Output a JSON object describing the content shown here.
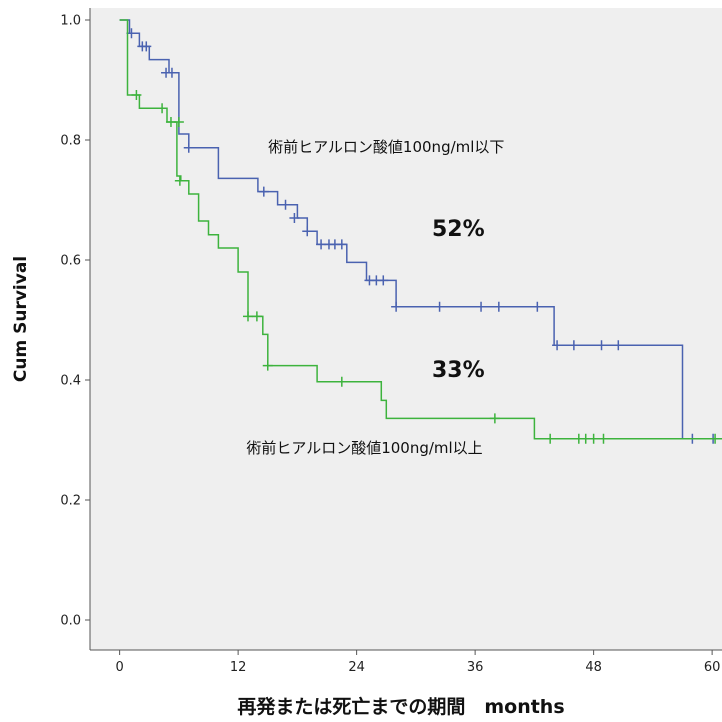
{
  "chart_data": {
    "type": "line",
    "subtype": "kaplan-meier",
    "title": "",
    "xlabel": "再発または死亡までの期間　months",
    "ylabel": "Cum Survival",
    "xlim": [
      -3,
      61
    ],
    "ylim": [
      -0.05,
      1.02
    ],
    "x_ticks": [
      0,
      12,
      24,
      36,
      48,
      60
    ],
    "x_tick_labels": [
      "0",
      "12",
      "24",
      "36",
      "48",
      "60"
    ],
    "y_ticks": [
      0.0,
      0.2,
      0.4,
      0.6,
      0.8,
      1.0
    ],
    "y_tick_labels": [
      "0.0",
      "0.2",
      "0.4",
      "0.6",
      "0.8",
      "1.0"
    ],
    "grid": false,
    "background_color": "#efefef",
    "series": [
      {
        "name": "術前ヒアルロン酸値100ng/ml以下",
        "color": "#4a62b0",
        "steps": [
          [
            0,
            1.0
          ],
          [
            1,
            0.978
          ],
          [
            2,
            0.956
          ],
          [
            3,
            0.934
          ],
          [
            5,
            0.912
          ],
          [
            6,
            0.81
          ],
          [
            7,
            0.787
          ],
          [
            10,
            0.736
          ],
          [
            14,
            0.714
          ],
          [
            16,
            0.692
          ],
          [
            18,
            0.67
          ],
          [
            19,
            0.648
          ],
          [
            20,
            0.626
          ],
          [
            23,
            0.596
          ],
          [
            25,
            0.566
          ],
          [
            28,
            0.522
          ],
          [
            44,
            0.458
          ],
          [
            57,
            0.302
          ],
          [
            61,
            0.302
          ]
        ],
        "censored": [
          [
            1.2,
            0.978
          ],
          [
            2.3,
            0.956
          ],
          [
            2.7,
            0.956
          ],
          [
            4.7,
            0.912
          ],
          [
            5.3,
            0.912
          ],
          [
            7,
            0.787
          ],
          [
            14.6,
            0.714
          ],
          [
            16.8,
            0.692
          ],
          [
            17.7,
            0.67
          ],
          [
            19,
            0.648
          ],
          [
            20.4,
            0.626
          ],
          [
            21.2,
            0.626
          ],
          [
            21.8,
            0.626
          ],
          [
            22.5,
            0.626
          ],
          [
            25.3,
            0.566
          ],
          [
            26,
            0.566
          ],
          [
            26.7,
            0.566
          ],
          [
            28,
            0.522
          ],
          [
            32.4,
            0.522
          ],
          [
            36.6,
            0.522
          ],
          [
            38.4,
            0.522
          ],
          [
            42.3,
            0.522
          ],
          [
            44.3,
            0.458
          ],
          [
            46,
            0.458
          ],
          [
            48.8,
            0.458
          ],
          [
            50.5,
            0.458
          ],
          [
            58,
            0.302
          ],
          [
            60.1,
            0.302
          ]
        ]
      },
      {
        "name": "術前ヒアルロン酸値100ng/ml以上",
        "color": "#3db33d",
        "steps": [
          [
            0,
            1.0
          ],
          [
            0.8,
            0.875
          ],
          [
            2,
            0.853
          ],
          [
            4.8,
            0.83
          ],
          [
            5.8,
            0.74
          ],
          [
            6.2,
            0.732
          ],
          [
            7,
            0.71
          ],
          [
            8,
            0.665
          ],
          [
            9,
            0.642
          ],
          [
            10,
            0.62
          ],
          [
            12,
            0.58
          ],
          [
            13,
            0.506
          ],
          [
            14.5,
            0.476
          ],
          [
            15,
            0.424
          ],
          [
            20,
            0.397
          ],
          [
            26.5,
            0.366
          ],
          [
            27,
            0.336
          ],
          [
            42,
            0.302
          ],
          [
            61,
            0.302
          ]
        ],
        "censored": [
          [
            1.7,
            0.875
          ],
          [
            4.3,
            0.853
          ],
          [
            5.2,
            0.83
          ],
          [
            6,
            0.83
          ],
          [
            6.1,
            0.732
          ],
          [
            13,
            0.506
          ],
          [
            13.9,
            0.506
          ],
          [
            15,
            0.424
          ],
          [
            22.5,
            0.397
          ],
          [
            38,
            0.336
          ],
          [
            43.6,
            0.302
          ],
          [
            46.5,
            0.302
          ],
          [
            47.2,
            0.302
          ],
          [
            48,
            0.302
          ],
          [
            49,
            0.302
          ],
          [
            60.3,
            0.302
          ]
        ]
      }
    ],
    "annotations": [
      {
        "text": "術前ヒアルロン酸値100ng/ml以下",
        "x": 27,
        "y": 0.78,
        "anchor": "middle",
        "size": "small"
      },
      {
        "text": "52%",
        "x": 34.3,
        "y": 0.64,
        "anchor": "middle",
        "size": "large"
      },
      {
        "text": "33%",
        "x": 34.3,
        "y": 0.405,
        "anchor": "middle",
        "size": "large"
      },
      {
        "text": "術前ヒアルロン酸値100ng/ml以上",
        "x": 24.8,
        "y": 0.278,
        "anchor": "middle",
        "size": "small"
      }
    ]
  }
}
